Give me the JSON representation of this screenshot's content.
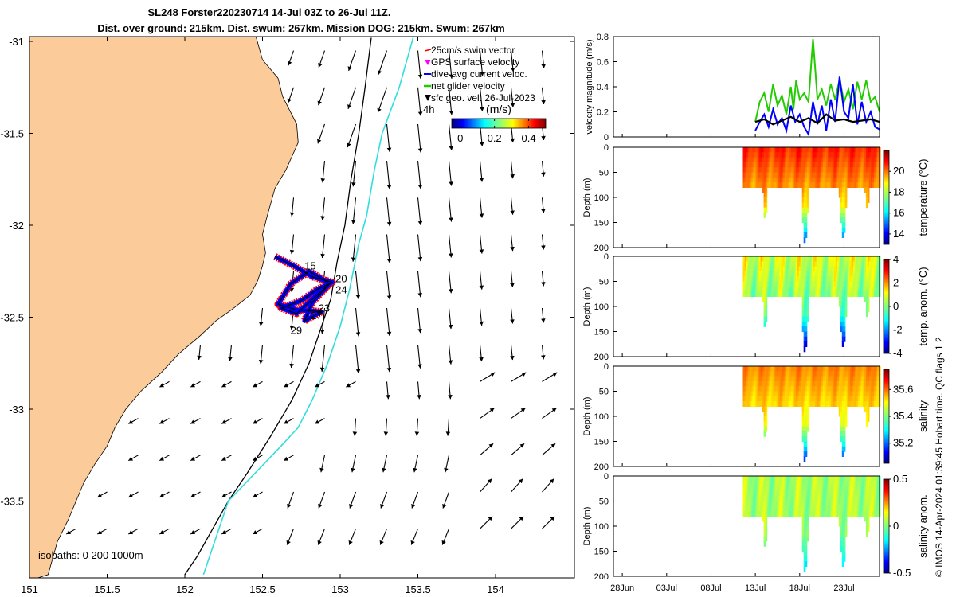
{
  "title": {
    "line1": "SL248 Forster220230714 14-Jul 03Z to 26-Jul 11Z.",
    "line2": "Dist. over ground: 215km. Dist. swum: 267km. Mission DOG: 215km. Swum: 267km"
  },
  "credit": "© IMOS 14-Apr-2024 01:39:45 Hobart time. QC flags 1  2",
  "colors": {
    "land": "#FCCB9A",
    "isobath_200": "#000000",
    "isobath_1000": "#33DDDD",
    "swim_vector": "#FF0000",
    "gps_velocity": "#FF00FF",
    "dive_avg_current": "#0000FF",
    "net_glider_velocity": "#22CC00",
    "geo_velocity": "#000000"
  },
  "chart_data": [
    {
      "type": "map",
      "name": "map",
      "xlim": [
        151,
        154.5
      ],
      "ylim": [
        -33.9,
        -30.98
      ],
      "xticks": [
        "151",
        "151.5",
        "152",
        "152.5",
        "153",
        "153.5",
        "154"
      ],
      "yticks": [
        "-31",
        "-31.5",
        "-32",
        "-32.5",
        "-33",
        "-33.5"
      ],
      "legend": {
        "placement": "top-right",
        "entries": [
          {
            "label": "25cm/s swim vector",
            "color": "#FF0000",
            "marker": "arrow"
          },
          {
            "label": "GPS surface velocity",
            "color": "#FF00FF",
            "marker": "triangle"
          },
          {
            "label": "dive-avg current veloc.",
            "color": "#0000FF",
            "marker": "line"
          },
          {
            "label": "net glider velocity",
            "color": "#22CC00",
            "marker": "arrow"
          },
          {
            "label": "sfc geo. vel. 26-Jul-2023",
            "color": "#000000",
            "marker": "arrow"
          }
        ]
      },
      "speed_colorbar": {
        "label": "(m/s)",
        "ticks": [
          "0",
          "0.2",
          "0.4"
        ],
        "range": [
          -0.05,
          0.5
        ]
      },
      "time_label": "4h",
      "isobath_label": "isobaths: 0   200  1000m",
      "coast": [
        [
          152.46,
          -30.98
        ],
        [
          152.5,
          -31.1
        ],
        [
          152.6,
          -31.2
        ],
        [
          152.63,
          -31.3
        ],
        [
          152.72,
          -31.45
        ],
        [
          152.73,
          -31.55
        ],
        [
          152.65,
          -31.7
        ],
        [
          152.58,
          -31.8
        ],
        [
          152.53,
          -31.95
        ],
        [
          152.5,
          -32.05
        ],
        [
          152.52,
          -32.15
        ],
        [
          152.5,
          -32.22
        ],
        [
          152.47,
          -32.3
        ],
        [
          152.42,
          -32.38
        ],
        [
          152.3,
          -32.46
        ],
        [
          152.2,
          -32.52
        ],
        [
          152.1,
          -32.6
        ],
        [
          151.96,
          -32.7
        ],
        [
          151.85,
          -32.8
        ],
        [
          151.72,
          -32.9
        ],
        [
          151.62,
          -33.0
        ],
        [
          151.55,
          -33.1
        ],
        [
          151.5,
          -33.2
        ],
        [
          151.42,
          -33.3
        ],
        [
          151.35,
          -33.4
        ],
        [
          151.3,
          -33.5
        ],
        [
          151.25,
          -33.6
        ],
        [
          151.18,
          -33.72
        ],
        [
          151.12,
          -33.9
        ]
      ],
      "isobath_200": [
        [
          153.2,
          -30.98
        ],
        [
          153.16,
          -31.25
        ],
        [
          153.12,
          -31.5
        ],
        [
          153.07,
          -31.75
        ],
        [
          153.03,
          -32.0
        ],
        [
          152.98,
          -32.2
        ],
        [
          152.94,
          -32.4
        ],
        [
          152.88,
          -32.55
        ],
        [
          152.8,
          -32.75
        ],
        [
          152.69,
          -32.95
        ],
        [
          152.55,
          -33.15
        ],
        [
          152.4,
          -33.35
        ],
        [
          152.28,
          -33.5
        ],
        [
          152.18,
          -33.65
        ],
        [
          152.08,
          -33.8
        ],
        [
          152.0,
          -33.9
        ]
      ],
      "isobath_1000": [
        [
          153.47,
          -30.98
        ],
        [
          153.38,
          -31.25
        ],
        [
          153.27,
          -31.5
        ],
        [
          153.22,
          -31.7
        ],
        [
          153.2,
          -31.8
        ],
        [
          153.17,
          -31.95
        ],
        [
          153.12,
          -32.1
        ],
        [
          153.06,
          -32.35
        ],
        [
          153.0,
          -32.55
        ],
        [
          152.92,
          -32.75
        ],
        [
          152.82,
          -32.95
        ],
        [
          152.73,
          -33.1
        ],
        [
          152.62,
          -33.2
        ],
        [
          152.45,
          -33.35
        ],
        [
          152.28,
          -33.5
        ],
        [
          152.22,
          -33.65
        ],
        [
          152.16,
          -33.8
        ],
        [
          152.12,
          -33.9
        ]
      ],
      "track": [
        [
          152.58,
          -32.17
        ],
        [
          152.7,
          -32.22
        ],
        [
          152.82,
          -32.28
        ],
        [
          152.95,
          -32.31
        ],
        [
          152.85,
          -32.35
        ],
        [
          152.75,
          -32.41
        ],
        [
          152.62,
          -32.45
        ],
        [
          152.72,
          -32.48
        ],
        [
          152.85,
          -32.38
        ],
        [
          152.93,
          -32.32
        ],
        [
          152.82,
          -32.42
        ],
        [
          152.77,
          -32.52
        ],
        [
          152.88,
          -32.47
        ],
        [
          152.72,
          -32.46
        ],
        [
          152.6,
          -32.43
        ],
        [
          152.68,
          -32.32
        ],
        [
          152.8,
          -32.25
        ],
        [
          152.92,
          -32.31
        ]
      ],
      "track_labels": [
        {
          "text": "15",
          "lon": 152.77,
          "lat": -32.24
        },
        {
          "text": "20",
          "lon": 152.97,
          "lat": -32.31
        },
        {
          "text": "24",
          "lon": 152.97,
          "lat": -32.37
        },
        {
          "text": "23",
          "lon": 152.86,
          "lat": -32.47
        },
        {
          "text": "27",
          "lon": 152.81,
          "lat": -32.51
        },
        {
          "text": "29",
          "lon": 152.68,
          "lat": -32.59
        }
      ]
    },
    {
      "type": "line",
      "name": "velocity",
      "ylabel": "velocity magnitude (m/s)",
      "ylim": [
        0,
        0.8
      ],
      "yticks": [
        "0",
        "0.2",
        "0.4",
        "0.6",
        "0.8"
      ],
      "xlim": [
        0,
        30
      ],
      "series": [
        {
          "color": "#22CC00",
          "x": [
            16,
            16.5,
            17,
            17.5,
            18,
            18.5,
            19,
            19.5,
            20,
            20.3,
            20.6,
            21,
            21.5,
            22,
            22.5,
            23,
            23.5,
            24,
            24.5,
            25,
            25.5,
            26,
            26.5,
            27,
            27.5,
            28,
            28.5,
            29,
            29.5,
            30
          ],
          "values": [
            0.12,
            0.28,
            0.35,
            0.2,
            0.42,
            0.25,
            0.33,
            0.18,
            0.4,
            0.22,
            0.45,
            0.3,
            0.35,
            0.28,
            0.78,
            0.3,
            0.38,
            0.25,
            0.42,
            0.3,
            0.46,
            0.28,
            0.38,
            0.22,
            0.44,
            0.3,
            0.45,
            0.28,
            0.32,
            0.2
          ]
        },
        {
          "color": "#0000FF",
          "x": [
            16,
            16.5,
            17,
            17.5,
            18,
            18.5,
            19,
            19.5,
            20,
            20.5,
            21,
            21.5,
            22,
            22.5,
            23,
            23.5,
            24,
            24.5,
            25,
            25.5,
            26,
            26.5,
            27,
            27.5,
            28,
            28.5,
            29,
            29.5,
            30
          ],
          "values": [
            0.05,
            0.12,
            0.18,
            0.08,
            0.22,
            0.1,
            0.15,
            0.05,
            0.25,
            0.12,
            0.18,
            0.08,
            0.02,
            0.28,
            0.1,
            0.25,
            0.05,
            0.3,
            0.12,
            0.48,
            0.2,
            0.15,
            0.42,
            0.1,
            0.28,
            0.12,
            0.2,
            0.08,
            0.06
          ]
        },
        {
          "color": "#000000",
          "x": [
            16,
            17,
            18,
            19,
            20,
            21,
            22,
            23,
            24,
            25,
            26,
            27,
            28,
            29,
            30
          ],
          "values": [
            0.12,
            0.14,
            0.1,
            0.13,
            0.16,
            0.12,
            0.15,
            0.11,
            0.18,
            0.13,
            0.14,
            0.12,
            0.13,
            0.14,
            0.12
          ]
        }
      ]
    },
    {
      "type": "heatmap",
      "name": "temperature",
      "ylabel": "Depth (m)",
      "colorbar_label": "temperature (°C)",
      "yticks": [
        "0",
        "50",
        "100",
        "150",
        "200"
      ],
      "ylim": [
        0,
        200
      ],
      "clim": [
        13,
        22
      ],
      "cbar_ticks": [
        "14",
        "16",
        "18",
        "20"
      ],
      "cbar_values": [
        14,
        16,
        18,
        20
      ]
    },
    {
      "type": "heatmap",
      "name": "temp-anomaly",
      "ylabel": "Depth (m)",
      "colorbar_label": "temp. anom. (°C)",
      "yticks": [
        "0",
        "50",
        "100",
        "150",
        "200"
      ],
      "ylim": [
        0,
        200
      ],
      "clim": [
        -4,
        4
      ],
      "cbar_ticks": [
        "4",
        "2",
        "0",
        "-2",
        "-4"
      ],
      "cbar_values": [
        4,
        2,
        0,
        -2,
        -4
      ]
    },
    {
      "type": "heatmap",
      "name": "salinity",
      "ylabel": "Depth (m)",
      "colorbar_label": "salinity",
      "yticks": [
        "0",
        "50",
        "100",
        "150",
        "200"
      ],
      "ylim": [
        0,
        200
      ],
      "clim": [
        35.05,
        35.75
      ],
      "cbar_ticks": [
        "35.6",
        "35.4",
        "35.2"
      ],
      "cbar_values": [
        35.6,
        35.4,
        35.2
      ]
    },
    {
      "type": "heatmap",
      "name": "salinity-anomaly",
      "ylabel": "Depth (m)",
      "colorbar_label": "salinity anom.",
      "yticks": [
        "0",
        "50",
        "100",
        "150",
        "200"
      ],
      "ylim": [
        0,
        200
      ],
      "clim": [
        -0.5,
        0.5
      ],
      "cbar_ticks": [
        "0.5",
        "0",
        "-0.5"
      ],
      "cbar_values": [
        0.5,
        0,
        -0.5
      ],
      "xticks": [
        "28Jun",
        "03Jul",
        "08Jul",
        "13Jul",
        "18Jul",
        "23Jul"
      ]
    }
  ]
}
